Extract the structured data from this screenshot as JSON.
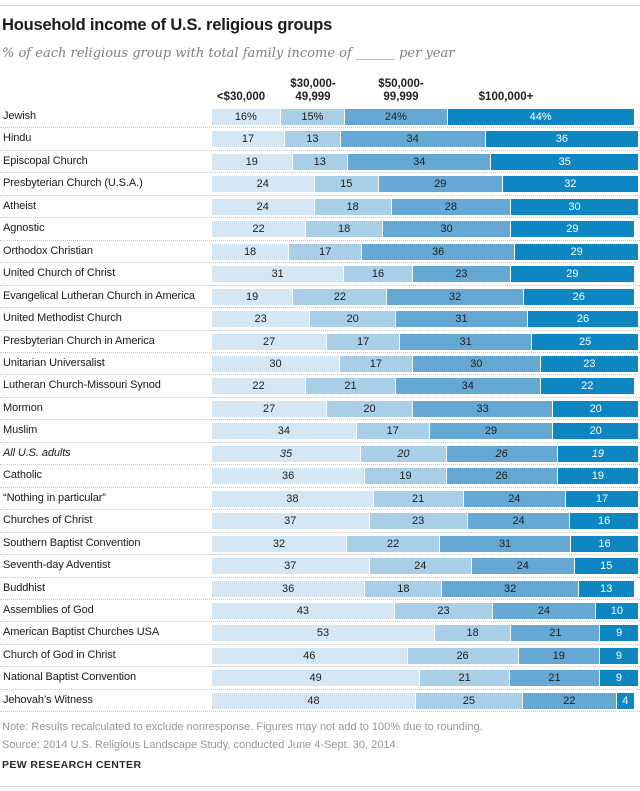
{
  "title": "Household income of U.S. religious groups",
  "subtitle": "% of each religious group with total family income of ______ per year",
  "chart_data": {
    "type": "bar",
    "variant": "stacked-horizontal",
    "unit": "percent",
    "column_headers": [
      "<$30,000",
      "$30,000-49,999",
      "$50,000-99,999",
      "$100,000+"
    ],
    "segment_colors": [
      "#d5e7f4",
      "#a9cee7",
      "#66a8d4",
      "#0d86c2"
    ],
    "first_row_value_suffix": "%",
    "xlim": [
      0,
      100
    ],
    "rows": [
      {
        "label": "Jewish",
        "values": [
          16,
          15,
          24,
          44
        ]
      },
      {
        "label": "Hindu",
        "values": [
          17,
          13,
          34,
          36
        ]
      },
      {
        "label": "Episcopal Church",
        "values": [
          19,
          13,
          34,
          35
        ]
      },
      {
        "label": "Presbyterian Church (U.S.A.)",
        "values": [
          24,
          15,
          29,
          32
        ]
      },
      {
        "label": "Atheist",
        "values": [
          24,
          18,
          28,
          30
        ]
      },
      {
        "label": "Agnostic",
        "values": [
          22,
          18,
          30,
          29
        ]
      },
      {
        "label": "Orthodox Christian",
        "values": [
          18,
          17,
          36,
          29
        ]
      },
      {
        "label": "United Church of Christ",
        "values": [
          31,
          16,
          23,
          29
        ]
      },
      {
        "label": "Evangelical Lutheran Church in America",
        "values": [
          19,
          22,
          32,
          26
        ]
      },
      {
        "label": "United Methodist Church",
        "values": [
          23,
          20,
          31,
          26
        ]
      },
      {
        "label": "Presbyterian Church in America",
        "values": [
          27,
          17,
          31,
          25
        ]
      },
      {
        "label": "Unitarian Universalist",
        "values": [
          30,
          17,
          30,
          23
        ]
      },
      {
        "label": "Lutheran Church-Missouri Synod",
        "values": [
          22,
          21,
          34,
          22
        ]
      },
      {
        "label": "Mormon",
        "values": [
          27,
          20,
          33,
          20
        ]
      },
      {
        "label": "Muslim",
        "values": [
          34,
          17,
          29,
          20
        ]
      },
      {
        "label": "All U.S. adults",
        "values": [
          35,
          20,
          26,
          19
        ],
        "italic": true
      },
      {
        "label": "Catholic",
        "values": [
          36,
          19,
          26,
          19
        ]
      },
      {
        "label": "“Nothing in particular”",
        "values": [
          38,
          21,
          24,
          17
        ]
      },
      {
        "label": "Churches of Christ",
        "values": [
          37,
          23,
          24,
          16
        ]
      },
      {
        "label": "Southern Baptist Convention",
        "values": [
          32,
          22,
          31,
          16
        ]
      },
      {
        "label": "Seventh-day Adventist",
        "values": [
          37,
          24,
          24,
          15
        ]
      },
      {
        "label": "Buddhist",
        "values": [
          36,
          18,
          32,
          13
        ]
      },
      {
        "label": "Assemblies of God",
        "values": [
          43,
          23,
          24,
          10
        ]
      },
      {
        "label": "American Baptist Churches USA",
        "values": [
          53,
          18,
          21,
          9
        ]
      },
      {
        "label": "Church of God in Christ",
        "values": [
          46,
          26,
          19,
          9
        ]
      },
      {
        "label": "National Baptist Convention",
        "values": [
          49,
          21,
          21,
          9
        ]
      },
      {
        "label": "Jehovah’s Witness",
        "values": [
          48,
          25,
          22,
          4
        ]
      }
    ]
  },
  "footer": {
    "note": "Note: Results recalculated to exclude nonresponse. Figures may not add to 100% due to rounding.",
    "source": "Source: 2014 U.S. Religious Landscape Study, conducted June 4-Sept. 30, 2014.",
    "brand": "PEW RESEARCH CENTER"
  }
}
